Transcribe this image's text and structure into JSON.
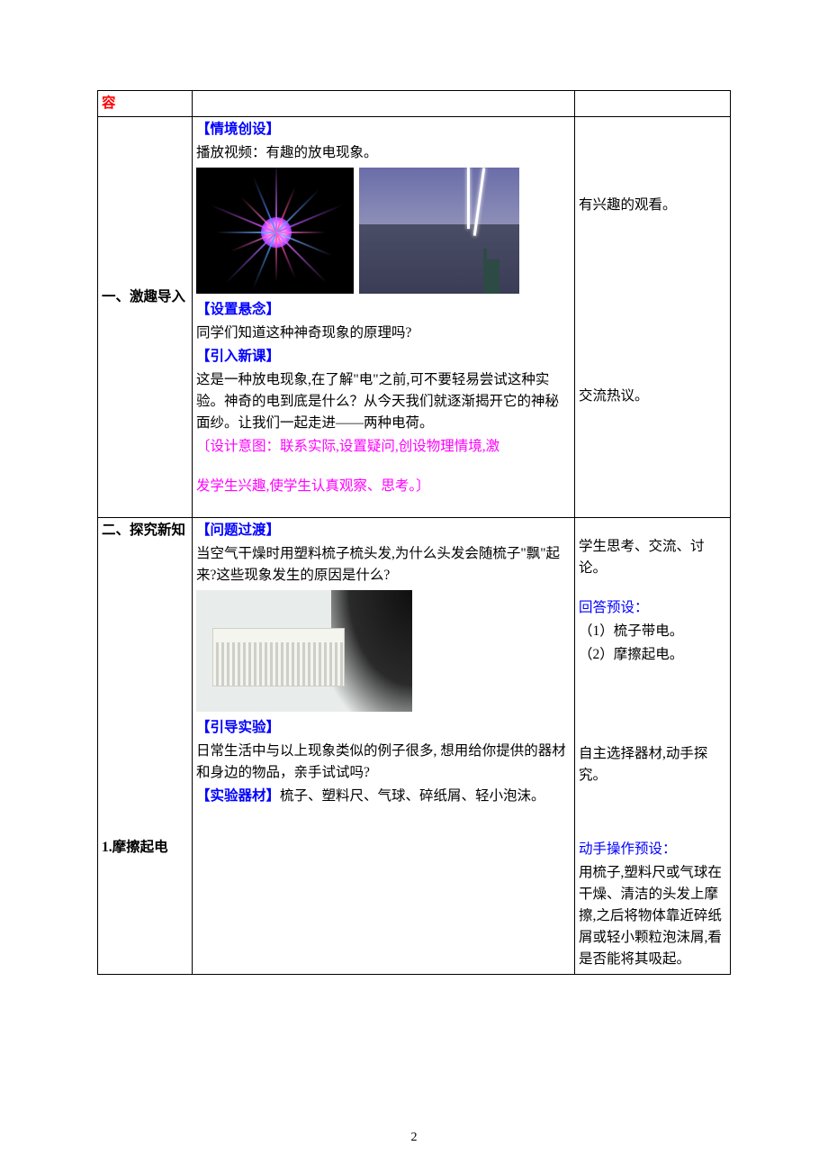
{
  "row0": {
    "left": "容"
  },
  "row1": {
    "left_label": "一、激趣导入",
    "h_situation": "【情境创设】",
    "video_line": "播放视频：有趣的放电现象。",
    "h_suspense": "【设置悬念】",
    "q1": "同学们知道这种神奇现象的原理吗?",
    "h_intro": "【引入新课】",
    "intro_body": "这是一种放电现象,在了解\"电\"之前,可不要轻易尝试这种实验。神奇的电到底是什么？从今天我们就逐渐揭开它的神秘面纱。让我们一起走进——两种电荷。",
    "design_prefix": "〔设计意图：",
    "design_body1": "联系实际,设置疑问,创设物理情境,激",
    "design_body2": "发学生兴趣,使学生认真观察、思考。〕",
    "r_watch": "有兴趣的观看。",
    "r_discuss": "交流热议。"
  },
  "row2": {
    "left_label": "二、探究新知",
    "left_sub": "1.摩擦起电",
    "h_problem": "【问题过渡】",
    "problem_body": "当空气干燥时用塑料梳子梳头发,为什么头发会随梳子\"飘\"起来?这些现象发生的原因是什么?",
    "h_guide": "【引导实验】",
    "guide_body": "日常生活中与以上现象类似的例子很多, 想用给你提供的器材和身边的物品，亲手试试吗?",
    "h_equip": "【实验器材】",
    "equip_body": "梳子、塑料尺、气球、碎纸屑、轻小泡沫。",
    "r_think": "学生思考、交流、讨论。",
    "r_answer_head": "回答预设：",
    "r_answer_1": "（1）梳子带电。",
    "r_answer_2": "（2）摩擦起电。",
    "r_select": "自主选择器材,动手探究。",
    "r_op_head": "动手操作预设：",
    "r_op_body": "用梳子,塑料尺或气球在干燥、清洁的头发上摩擦,之后将物体靠近碎纸屑或轻小颗粒泡沫屑,看是否能将其吸起。"
  },
  "plasma": {
    "ray_colors": [
      "#ff55aa",
      "#5599ff",
      "#aa66ff",
      "#ff66cc",
      "#66aaff",
      "#dd55ff",
      "#ff77bb",
      "#5588ff",
      "#cc66ff",
      "#ff55aa",
      "#6699ff",
      "#bb55ff",
      "#ff66cc",
      "#77aaff",
      "#dd66ff",
      "#ff55bb"
    ]
  },
  "page_number": "2"
}
